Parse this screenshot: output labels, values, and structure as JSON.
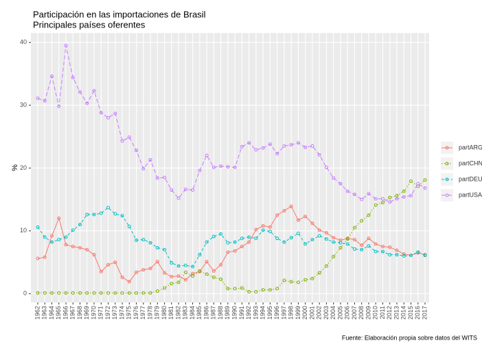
{
  "chart_data": {
    "type": "line",
    "title": "Participación en las importaciones  de Brasil",
    "subtitle": "Principales países oferentes",
    "y_label": "%",
    "caption": "Fuente: Elaboración propia sobre datos del WITS",
    "categories": [
      "1962",
      "1963",
      "1964",
      "1965",
      "1966",
      "1967",
      "1968",
      "1969",
      "1970",
      "1971",
      "1972",
      "1973",
      "1974",
      "1975",
      "1976",
      "1977",
      "1978",
      "1979",
      "1980",
      "1981",
      "1982",
      "1983",
      "1984",
      "1985",
      "1986",
      "1987",
      "1988",
      "1989",
      "1990",
      "1991",
      "1992",
      "1993",
      "1994",
      "1995",
      "1996",
      "1997",
      "1998",
      "1999",
      "2000",
      "2001",
      "2002",
      "2003",
      "2004",
      "2005",
      "2006",
      "2007",
      "2008",
      "2009",
      "2010",
      "2011",
      "2012",
      "2013",
      "2014",
      "2015",
      "2016",
      "2017"
    ],
    "series": [
      {
        "name": "partARG",
        "color": "#F8766D",
        "linetype": "solid",
        "values": [
          5.6,
          5.8,
          9.2,
          12.0,
          7.8,
          7.5,
          7.3,
          7.0,
          6.2,
          3.5,
          4.6,
          5.0,
          2.6,
          1.9,
          3.4,
          3.8,
          4.0,
          5.1,
          3.3,
          2.7,
          2.8,
          2.2,
          3.2,
          3.5,
          5.1,
          3.6,
          4.6,
          6.6,
          6.8,
          7.5,
          8.2,
          10.2,
          10.8,
          10.6,
          12.5,
          13.2,
          13.9,
          11.7,
          12.3,
          11.2,
          10.1,
          9.7,
          8.9,
          8.5,
          8.8,
          8.6,
          7.7,
          8.8,
          7.9,
          7.5,
          7.4,
          6.9,
          6.3,
          6.1,
          6.5,
          6.2
        ]
      },
      {
        "name": "partCHN",
        "color": "#7CAE00",
        "linetype": "dotted",
        "values": [
          0.1,
          0.1,
          0.1,
          0.1,
          0.1,
          0.1,
          0.1,
          0.1,
          0.1,
          0.1,
          0.1,
          0.1,
          0.1,
          0.1,
          0.1,
          0.1,
          0.1,
          0.4,
          0.9,
          1.6,
          1.8,
          3.4,
          2.8,
          3.6,
          3.1,
          2.6,
          2.3,
          0.8,
          0.8,
          0.9,
          0.3,
          0.3,
          0.6,
          0.6,
          0.8,
          2.1,
          1.9,
          1.8,
          2.2,
          2.4,
          3.3,
          4.4,
          5.9,
          7.3,
          8.7,
          10.5,
          11.6,
          12.5,
          14.1,
          14.5,
          15.3,
          15.6,
          16.3,
          17.9,
          17.1,
          18.1
        ]
      },
      {
        "name": "partDEU",
        "color": "#00BFC4",
        "linetype": "dashed",
        "values": [
          10.6,
          9.0,
          8.2,
          8.6,
          9.0,
          10.1,
          11.0,
          12.6,
          12.6,
          12.8,
          13.7,
          12.7,
          12.4,
          10.7,
          8.5,
          8.6,
          8.1,
          7.3,
          7.0,
          4.9,
          4.4,
          4.5,
          4.3,
          6.2,
          8.2,
          9.1,
          9.5,
          8.1,
          8.2,
          8.8,
          9.0,
          8.8,
          10.1,
          9.9,
          8.8,
          8.2,
          8.9,
          9.6,
          7.9,
          8.6,
          9.2,
          8.7,
          8.2,
          8.1,
          7.9,
          7.1,
          7.0,
          7.6,
          6.7,
          6.7,
          6.2,
          6.2,
          6.0,
          6.1,
          6.6,
          6.1
        ]
      },
      {
        "name": "partUSA",
        "color": "#C77CFF",
        "linetype": "longdash",
        "values": [
          31.1,
          30.7,
          34.6,
          29.8,
          39.5,
          34.4,
          32.1,
          30.3,
          32.3,
          28.8,
          28.0,
          28.7,
          24.3,
          24.9,
          22.8,
          19.9,
          21.3,
          18.4,
          18.5,
          16.5,
          15.2,
          16.6,
          16.5,
          19.6,
          22.0,
          20.1,
          20.3,
          20.2,
          20.1,
          23.4,
          24.0,
          22.9,
          23.2,
          23.8,
          22.3,
          23.5,
          23.7,
          24.0,
          23.3,
          23.5,
          22.1,
          20.1,
          18.4,
          17.5,
          16.3,
          15.8,
          15.0,
          15.9,
          15.1,
          15.1,
          14.6,
          15.1,
          15.4,
          15.6,
          17.5,
          16.8
        ]
      }
    ],
    "ylim": [
      -1.4,
      41.5
    ],
    "yticks": [
      0,
      10,
      20,
      30,
      40
    ],
    "grid": true
  }
}
